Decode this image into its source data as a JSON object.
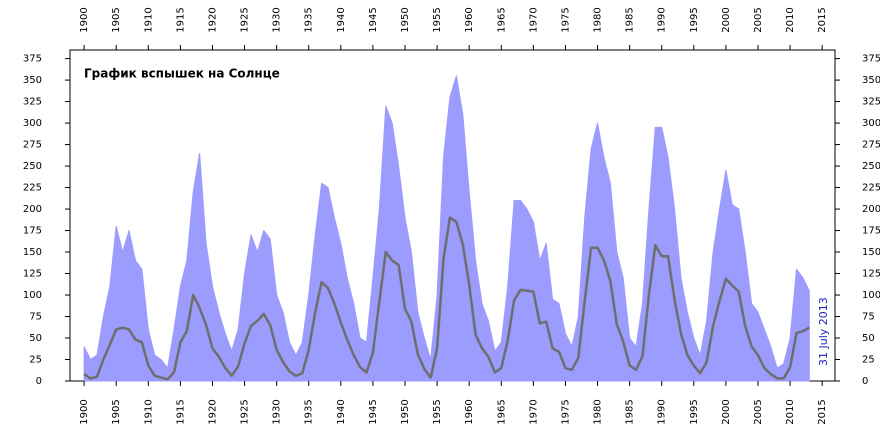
{
  "chart_data": {
    "type": "line",
    "title": "График вспышек на Солнце",
    "annotation": "31 July 2013",
    "x": [
      1900,
      1901,
      1902,
      1903,
      1904,
      1905,
      1906,
      1907,
      1908,
      1909,
      1910,
      1911,
      1912,
      1913,
      1914,
      1915,
      1916,
      1917,
      1918,
      1919,
      1920,
      1921,
      1922,
      1923,
      1924,
      1925,
      1926,
      1927,
      1928,
      1929,
      1930,
      1931,
      1932,
      1933,
      1934,
      1935,
      1936,
      1937,
      1938,
      1939,
      1940,
      1941,
      1942,
      1943,
      1944,
      1945,
      1946,
      1947,
      1948,
      1949,
      1950,
      1951,
      1952,
      1953,
      1954,
      1955,
      1956,
      1957,
      1958,
      1959,
      1960,
      1961,
      1962,
      1963,
      1964,
      1965,
      1966,
      1967,
      1968,
      1969,
      1970,
      1971,
      1972,
      1973,
      1974,
      1975,
      1976,
      1977,
      1978,
      1979,
      1980,
      1981,
      1982,
      1983,
      1984,
      1985,
      1986,
      1987,
      1988,
      1989,
      1990,
      1991,
      1992,
      1993,
      1994,
      1995,
      1996,
      1997,
      1998,
      1999,
      2000,
      2001,
      2002,
      2003,
      2004,
      2005,
      2006,
      2007,
      2008,
      2009,
      2010,
      2011,
      2012,
      2013
    ],
    "series": [
      {
        "color": "#9c9cff",
        "fill": true,
        "values": [
          40,
          25,
          30,
          75,
          110,
          180,
          150,
          175,
          140,
          130,
          60,
          30,
          25,
          15,
          60,
          110,
          140,
          220,
          265,
          160,
          110,
          80,
          55,
          35,
          60,
          125,
          170,
          150,
          175,
          165,
          100,
          80,
          45,
          30,
          45,
          100,
          170,
          230,
          225,
          190,
          160,
          120,
          90,
          50,
          45,
          120,
          200,
          320,
          300,
          250,
          190,
          150,
          80,
          50,
          25,
          100,
          260,
          330,
          355,
          310,
          220,
          140,
          90,
          70,
          35,
          45,
          110,
          210,
          210,
          200,
          185,
          140,
          160,
          95,
          90,
          55,
          40,
          75,
          190,
          270,
          300,
          260,
          230,
          150,
          120,
          50,
          40,
          90,
          200,
          295,
          295,
          260,
          200,
          120,
          80,
          50,
          30,
          70,
          150,
          200,
          245,
          205,
          200,
          150,
          90,
          80,
          60,
          40,
          15,
          20,
          50,
          130,
          120,
          105
        ]
      },
      {
        "color": "#6e6e6e",
        "fill": false,
        "values": [
          8,
          3,
          5,
          25,
          42,
          60,
          62,
          60,
          48,
          45,
          18,
          6,
          4,
          2,
          10,
          45,
          58,
          100,
          85,
          65,
          38,
          28,
          15,
          6,
          17,
          44,
          64,
          70,
          78,
          65,
          36,
          22,
          11,
          6,
          9,
          36,
          80,
          115,
          108,
          90,
          68,
          48,
          30,
          16,
          10,
          33,
          92,
          150,
          140,
          135,
          84,
          69,
          31,
          14,
          4,
          38,
          142,
          190,
          185,
          159,
          112,
          54,
          38,
          28,
          10,
          15,
          47,
          94,
          106,
          105,
          104,
          67,
          69,
          38,
          34,
          15,
          13,
          27,
          93,
          155,
          155,
          140,
          116,
          66,
          46,
          18,
          13,
          29,
          100,
          158,
          145,
          145,
          94,
          55,
          30,
          18,
          9,
          22,
          64,
          93,
          119,
          111,
          104,
          64,
          40,
          30,
          15,
          8,
          3,
          3,
          16,
          56,
          58,
          62
        ]
      }
    ],
    "xlim": [
      1897.8,
      2017
    ],
    "xticks": [
      1900,
      1905,
      1910,
      1915,
      1920,
      1925,
      1930,
      1935,
      1940,
      1945,
      1950,
      1955,
      1960,
      1965,
      1970,
      1975,
      1980,
      1985,
      1990,
      1995,
      2000,
      2005,
      2010,
      2015
    ],
    "ylim": [
      0,
      385
    ],
    "yticks": [
      0,
      25,
      50,
      75,
      100,
      125,
      150,
      175,
      200,
      225,
      250,
      275,
      300,
      325,
      350,
      375
    ]
  }
}
